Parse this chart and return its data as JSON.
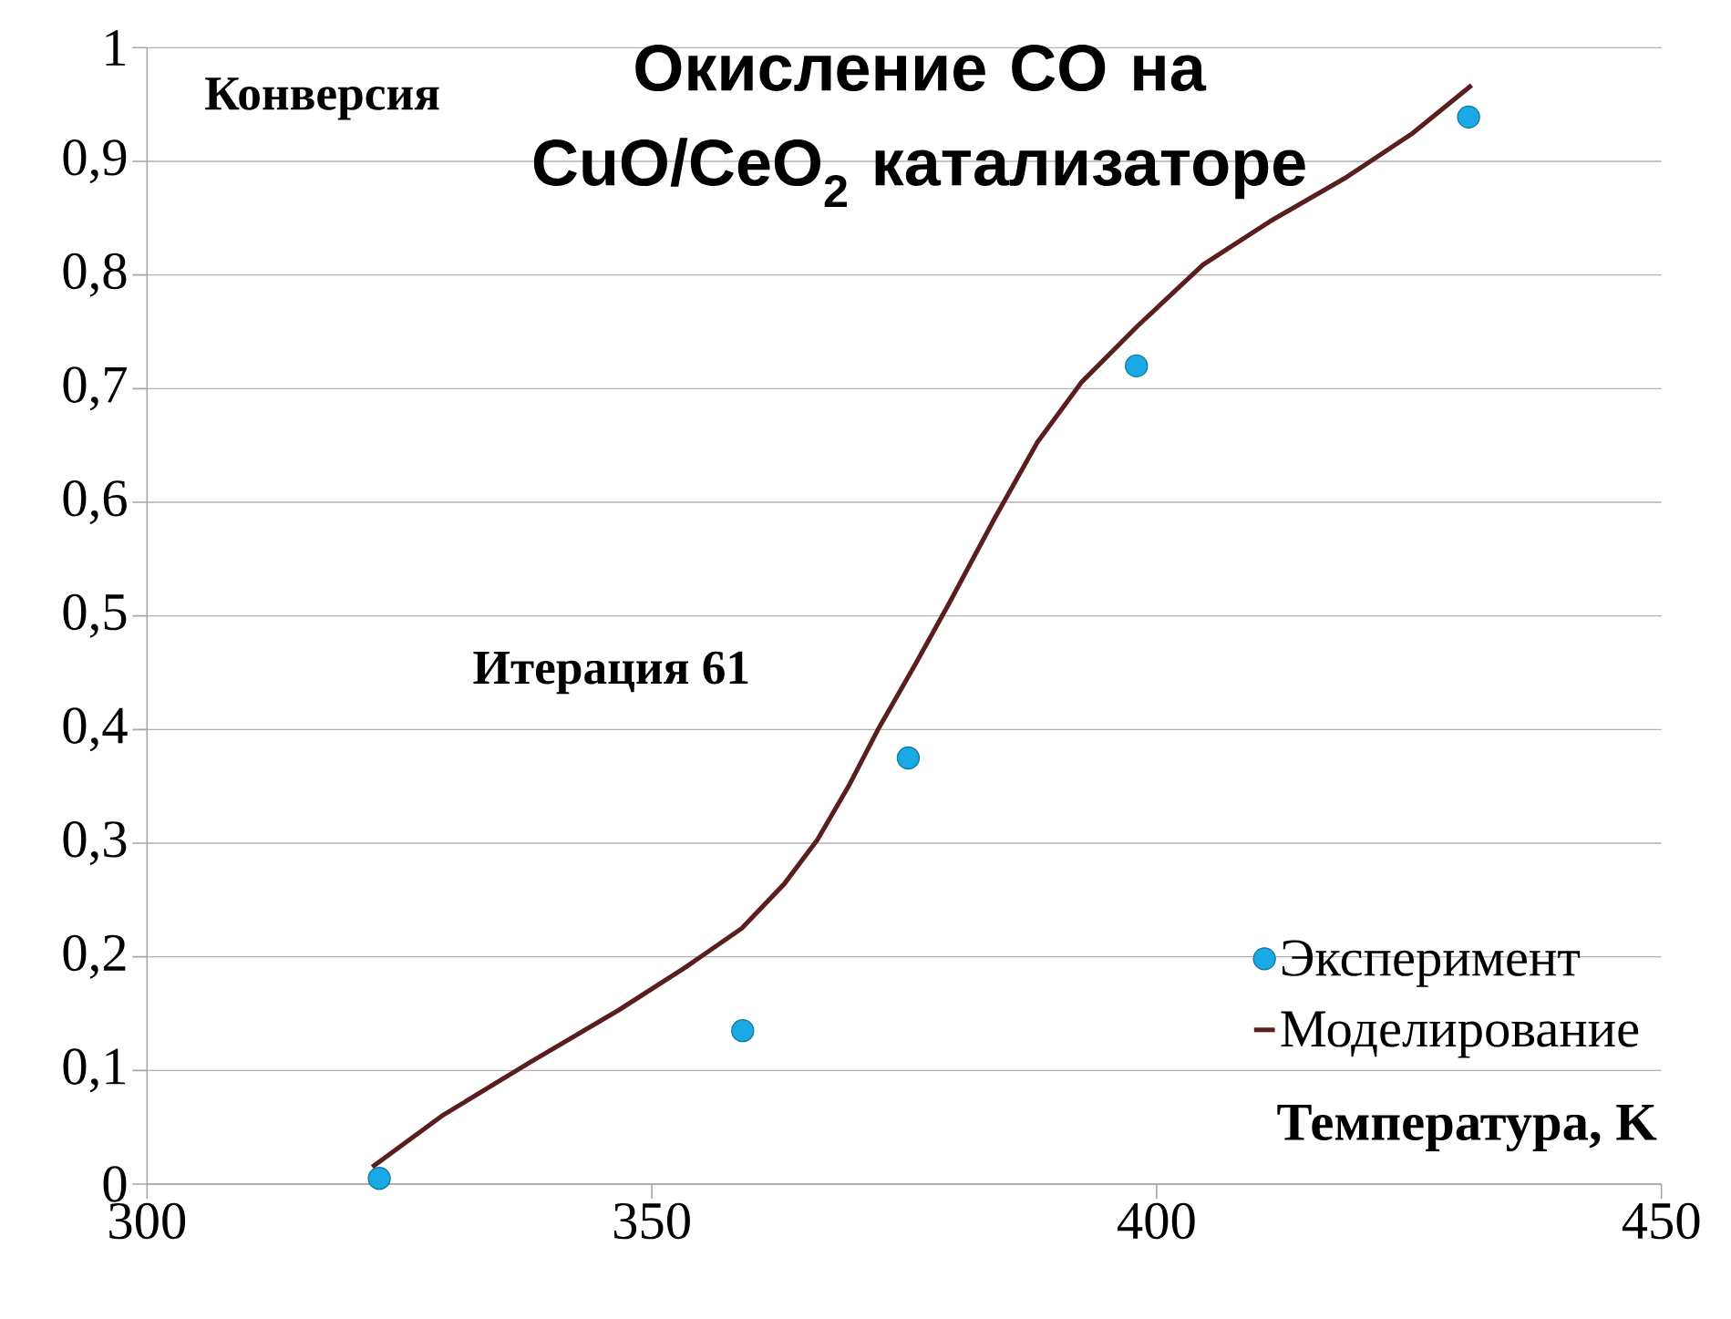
{
  "chart_data": {
    "type": "line",
    "title": "Окисление CO на CuO/CeO$_{2}$ катализаторе",
    "xlabel": "Температура, K",
    "ylabel": "Конверсия",
    "annotations": [
      "Итерация 61"
    ],
    "xlim": [
      300,
      450
    ],
    "xticks": [
      300,
      350,
      400,
      450
    ],
    "ylim": [
      0,
      1
    ],
    "yticks": [
      0,
      {
        "value": 0.1,
        "label": "0,1"
      },
      {
        "value": 0.2,
        "label": "0,2"
      },
      {
        "value": 0.3,
        "label": "0,3"
      },
      {
        "value": 0.4,
        "label": "0,4"
      },
      {
        "value": 0.5,
        "label": "0,5"
      },
      {
        "value": 0.6,
        "label": "0,6"
      },
      {
        "value": 0.7,
        "label": "0,7"
      },
      {
        "value": 0.8,
        "label": "0,8"
      },
      {
        "value": 0.9,
        "label": "0,9"
      },
      1
    ],
    "grid": "y",
    "legend": "bottom right",
    "series": [
      {
        "name": "Эксперимент",
        "type": "scatter",
        "marker": "circle",
        "color": "#1ba9e6",
        "x": [
          323,
          359,
          375.4,
          398,
          430.9
        ],
        "values": [
          0.005,
          0.135,
          0.375,
          0.72,
          0.939
        ]
      },
      {
        "name": "Моделирование",
        "marker": "none",
        "line_style": "solid",
        "color": "#5a1e1e",
        "x": [
          322.3,
          329.2,
          337.9,
          346.7,
          353.2,
          358.9,
          363.1,
          366.4,
          369.6,
          372.4,
          376.2,
          379.5,
          383.9,
          388.2,
          392.6,
          398.1,
          404.6,
          411.2,
          418.8,
          425.4,
          431.2
        ],
        "values": [
          0.015,
          0.06,
          0.107,
          0.153,
          0.19,
          0.225,
          0.264,
          0.303,
          0.352,
          0.4,
          0.459,
          0.512,
          0.585,
          0.653,
          0.706,
          0.755,
          0.809,
          0.847,
          0.886,
          0.925,
          0.967
        ]
      }
    ]
  }
}
